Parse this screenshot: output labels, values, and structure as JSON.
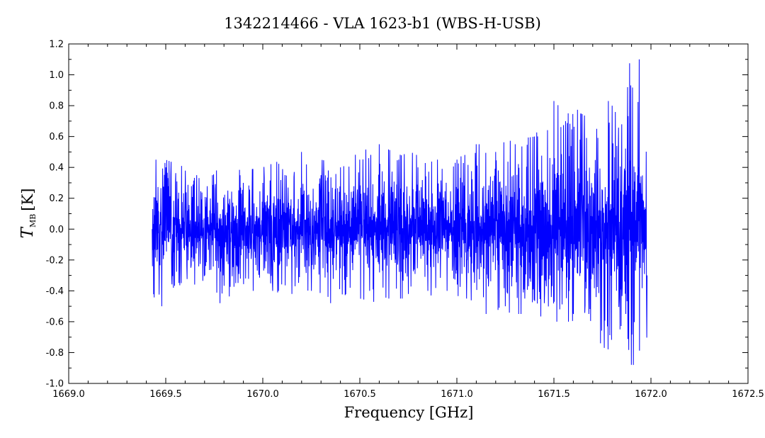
{
  "chart_data": {
    "type": "line",
    "title": "1342214466 - VLA 1623-b1 (WBS-H-USB)",
    "xlabel": "Frequency [GHz]",
    "ylabel_main": "T",
    "ylabel_sub": "MB",
    "ylabel_unit": "[K]",
    "xlim": [
      1669.0,
      1672.5
    ],
    "ylim": [
      -1.0,
      1.2
    ],
    "x_ticks": [
      1669.0,
      1669.5,
      1670.0,
      1670.5,
      1671.0,
      1671.5,
      1672.0,
      1672.5
    ],
    "x_tick_labels": [
      "1669.0",
      "1669.5",
      "1670.0",
      "1670.5",
      "1671.0",
      "1671.5",
      "1672.0",
      "1672.5"
    ],
    "y_ticks": [
      -1.0,
      -0.8,
      -0.6,
      -0.4,
      -0.2,
      0.0,
      0.2,
      0.4,
      0.6,
      0.8,
      1.0,
      1.2
    ],
    "y_tick_labels": [
      "-1.0",
      "-0.8",
      "-0.6",
      "-0.4",
      "-0.2",
      "0.0",
      "0.2",
      "0.4",
      "0.6",
      "0.8",
      "1.0",
      "1.2"
    ],
    "grid": false,
    "line_color": "#0000ff",
    "series": [
      {
        "x": [
          1669.43,
          1669.45,
          1669.48,
          1669.5,
          1669.53,
          1669.55,
          1669.58,
          1669.6,
          1669.63,
          1669.66,
          1669.7,
          1669.74,
          1669.78,
          1669.82,
          1669.86,
          1669.9,
          1669.95,
          1670.0,
          1670.05,
          1670.1,
          1670.15,
          1670.2,
          1670.25,
          1670.3,
          1670.35,
          1670.4,
          1670.45,
          1670.5,
          1670.55,
          1670.6,
          1670.65,
          1670.7,
          1670.75,
          1670.8,
          1670.85,
          1670.9,
          1670.95,
          1671.0,
          1671.05,
          1671.1,
          1671.15,
          1671.2,
          1671.25,
          1671.3,
          1671.35,
          1671.4,
          1671.45,
          1671.5,
          1671.53,
          1671.56,
          1671.6,
          1671.64,
          1671.68,
          1671.72,
          1671.76,
          1671.8,
          1671.84,
          1671.88,
          1671.91,
          1671.94,
          1671.98
        ],
        "y": [
          0.0,
          0.45,
          -0.5,
          0.4,
          -0.3,
          0.3,
          -0.35,
          0.2,
          -0.25,
          0.35,
          -0.3,
          0.35,
          -0.48,
          0.25,
          -0.35,
          0.3,
          -0.4,
          0.3,
          -0.35,
          0.25,
          -0.42,
          0.5,
          -0.4,
          0.35,
          -0.48,
          0.4,
          -0.38,
          0.45,
          -0.4,
          0.55,
          -0.45,
          0.45,
          -0.42,
          0.4,
          -0.4,
          0.45,
          -0.4,
          0.45,
          -0.45,
          0.55,
          -0.55,
          0.5,
          -0.5,
          0.55,
          -0.45,
          0.6,
          -0.48,
          0.83,
          -0.52,
          0.7,
          -0.55,
          0.75,
          -0.55,
          0.65,
          -0.77,
          0.8,
          -0.65,
          0.92,
          -0.88,
          1.1,
          -0.3
        ],
        "envelope": {
          "x": [
            1669.43,
            1669.5,
            1669.6,
            1669.7,
            1669.8,
            1669.9,
            1670.0,
            1670.1,
            1670.2,
            1670.3,
            1670.4,
            1670.5,
            1670.6,
            1670.7,
            1670.8,
            1670.9,
            1671.0,
            1671.1,
            1671.2,
            1671.3,
            1671.4,
            1671.5,
            1671.6,
            1671.7,
            1671.8,
            1671.9,
            1671.98
          ],
          "ymax": [
            0.2,
            0.45,
            0.4,
            0.38,
            0.4,
            0.38,
            0.4,
            0.45,
            0.42,
            0.45,
            0.42,
            0.5,
            0.55,
            0.48,
            0.5,
            0.45,
            0.45,
            0.55,
            0.55,
            0.58,
            0.6,
            0.83,
            0.78,
            0.75,
            0.85,
            1.1,
            0.75
          ],
          "ymin": [
            -0.45,
            -0.4,
            -0.35,
            -0.4,
            -0.45,
            -0.4,
            -0.38,
            -0.42,
            -0.4,
            -0.45,
            -0.42,
            -0.45,
            -0.48,
            -0.45,
            -0.45,
            -0.42,
            -0.5,
            -0.55,
            -0.52,
            -0.55,
            -0.55,
            -0.6,
            -0.6,
            -0.7,
            -0.8,
            -0.88,
            -0.7
          ]
        }
      }
    ]
  }
}
